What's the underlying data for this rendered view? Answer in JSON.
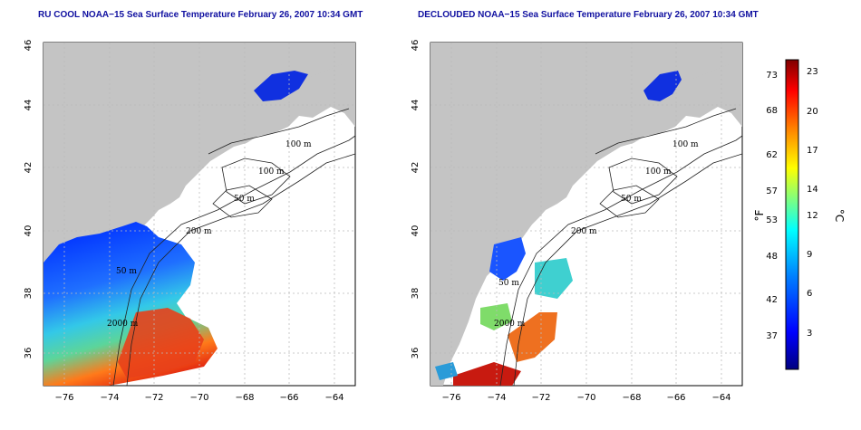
{
  "panels": [
    {
      "title": "RU COOL NOAA−15 Sea Surface Temperature February 26, 2007 10:34 GMT",
      "contour_labels": [
        "100 m",
        "100 m",
        "50 m",
        "200 m",
        "50 m",
        "2000 m"
      ]
    },
    {
      "title": "DECLOUDED NOAA−15 Sea Surface Temperature February 26, 2007 10:34 GMT",
      "contour_labels": [
        "100 m",
        "100 m",
        "50 m",
        "200 m",
        "50 m",
        "2000 m"
      ]
    }
  ],
  "axes": {
    "lon_ticks": [
      "−76",
      "−74",
      "−72",
      "−70",
      "−68",
      "−66",
      "−64"
    ],
    "lat_ticks": [
      "36",
      "38",
      "40",
      "42",
      "44",
      "46"
    ]
  },
  "colorbar": {
    "f_label": "°F",
    "c_label": "°C",
    "f_ticks": [
      "73",
      "68",
      "62",
      "57",
      "53",
      "48",
      "42",
      "37"
    ],
    "c_ticks": [
      "23",
      "20",
      "17",
      "14",
      "12",
      "9",
      "6",
      "3"
    ],
    "colors": [
      "#00007f",
      "#0000ff",
      "#007fff",
      "#00ffff",
      "#7fff7f",
      "#ffff00",
      "#ff7f00",
      "#ff0000",
      "#7f0000"
    ]
  }
}
